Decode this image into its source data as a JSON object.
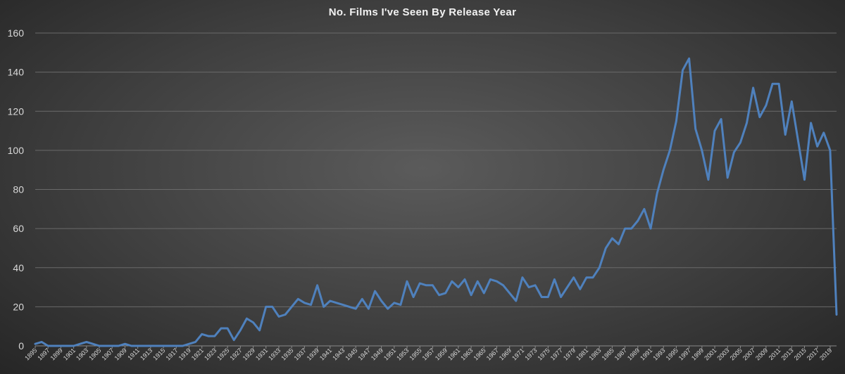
{
  "chart_data": {
    "type": "line",
    "title": "No. Films I've Seen By Release Year",
    "xlabel": "",
    "ylabel": "",
    "ylim": [
      0,
      160
    ],
    "yticks": [
      0,
      20,
      40,
      60,
      80,
      100,
      120,
      140,
      160
    ],
    "grid": true,
    "legend": "none",
    "x_start": 1895,
    "x_end": 2020,
    "x_tick_step": 2,
    "series": [
      {
        "color": "#4f81bd",
        "x": [
          1895,
          1896,
          1897,
          1898,
          1899,
          1900,
          1901,
          1902,
          1903,
          1904,
          1905,
          1906,
          1907,
          1908,
          1909,
          1910,
          1911,
          1912,
          1913,
          1914,
          1915,
          1916,
          1917,
          1918,
          1919,
          1920,
          1921,
          1922,
          1923,
          1924,
          1925,
          1926,
          1927,
          1928,
          1929,
          1930,
          1931,
          1932,
          1933,
          1934,
          1935,
          1936,
          1937,
          1938,
          1939,
          1940,
          1941,
          1942,
          1943,
          1944,
          1945,
          1946,
          1947,
          1948,
          1949,
          1950,
          1951,
          1952,
          1953,
          1954,
          1955,
          1956,
          1957,
          1958,
          1959,
          1960,
          1961,
          1962,
          1963,
          1964,
          1965,
          1966,
          1967,
          1968,
          1969,
          1970,
          1971,
          1972,
          1973,
          1974,
          1975,
          1976,
          1977,
          1978,
          1979,
          1980,
          1981,
          1982,
          1983,
          1984,
          1985,
          1986,
          1987,
          1988,
          1989,
          1990,
          1991,
          1992,
          1993,
          1994,
          1995,
          1996,
          1997,
          1998,
          1999,
          2000,
          2001,
          2002,
          2003,
          2004,
          2005,
          2006,
          2007,
          2008,
          2009,
          2010,
          2011,
          2012,
          2013,
          2014,
          2015,
          2016,
          2017,
          2018,
          2019,
          2020
        ],
        "values": [
          1,
          2,
          0,
          0,
          0,
          0,
          0,
          1,
          2,
          1,
          0,
          0,
          0,
          0,
          1,
          0,
          0,
          0,
          0,
          0,
          0,
          0,
          0,
          0,
          1,
          2,
          6,
          5,
          5,
          9,
          9,
          3,
          8,
          14,
          12,
          8,
          20,
          20,
          15,
          16,
          20,
          24,
          22,
          21,
          31,
          20,
          23,
          22,
          21,
          20,
          19,
          24,
          19,
          28,
          23,
          19,
          22,
          21,
          33,
          25,
          32,
          31,
          31,
          26,
          27,
          33,
          30,
          34,
          26,
          33,
          27,
          34,
          33,
          31,
          27,
          23,
          35,
          30,
          31,
          25,
          25,
          34,
          25,
          30,
          35,
          29,
          35,
          35,
          40,
          50,
          55,
          52,
          60,
          60,
          64,
          70,
          60,
          78,
          90,
          100,
          115,
          141,
          147,
          111,
          100,
          85,
          110,
          116,
          86,
          99,
          104,
          114,
          132,
          117,
          123,
          134,
          134,
          108,
          125,
          105,
          85,
          114,
          102,
          109,
          100,
          16
        ]
      }
    ]
  }
}
